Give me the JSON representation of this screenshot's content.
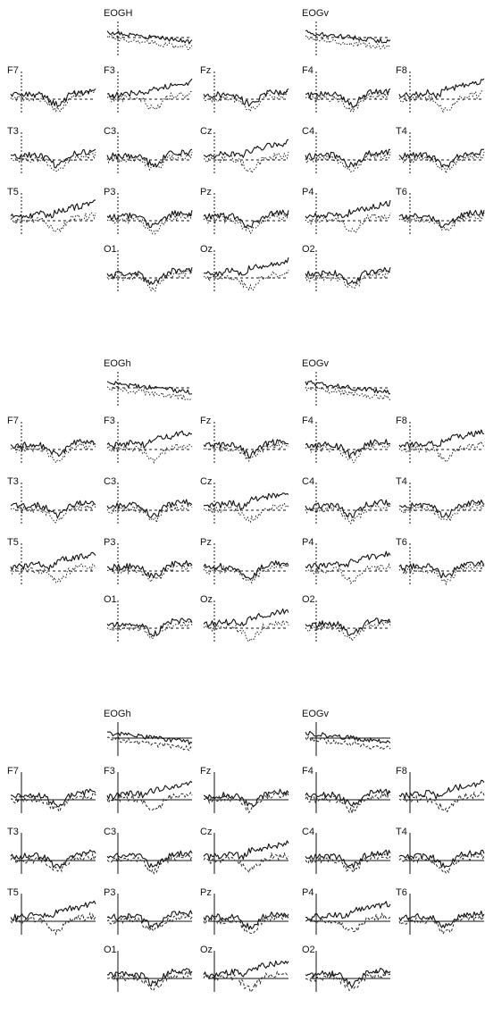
{
  "figure": {
    "panels": [
      {
        "id": "panel-1",
        "electrodes": [
          "EOGH",
          "EOGv",
          "F7",
          "F3",
          "Fz",
          "F4",
          "F8",
          "T3",
          "C3",
          "Cz",
          "C4",
          "T4",
          "T5",
          "P3",
          "Pz",
          "P4",
          "T6",
          "O1",
          "Oz",
          "O2"
        ],
        "comparison_style": "dotted",
        "baseline_style": "dashed"
      },
      {
        "id": "panel-2",
        "electrodes": [
          "EOGh",
          "EOGv",
          "F7",
          "F3",
          "Fz",
          "F4",
          "F8",
          "T3",
          "C3",
          "Cz",
          "C4",
          "T4",
          "T5",
          "P3",
          "Pz",
          "P4",
          "T6",
          "O1",
          "Oz",
          "O2"
        ],
        "comparison_style": "dotted",
        "baseline_style": "dashed"
      },
      {
        "id": "panel-3",
        "electrodes": [
          "EOGh",
          "EOGv",
          "F7",
          "F3",
          "Fz",
          "F4",
          "F8",
          "T3",
          "C3",
          "Cz",
          "C4",
          "T4",
          "T5",
          "P3",
          "Pz",
          "P4",
          "T6",
          "O1",
          "Oz",
          "O2"
        ],
        "comparison_style": "dashed",
        "baseline_style": "solid"
      }
    ]
  }
}
